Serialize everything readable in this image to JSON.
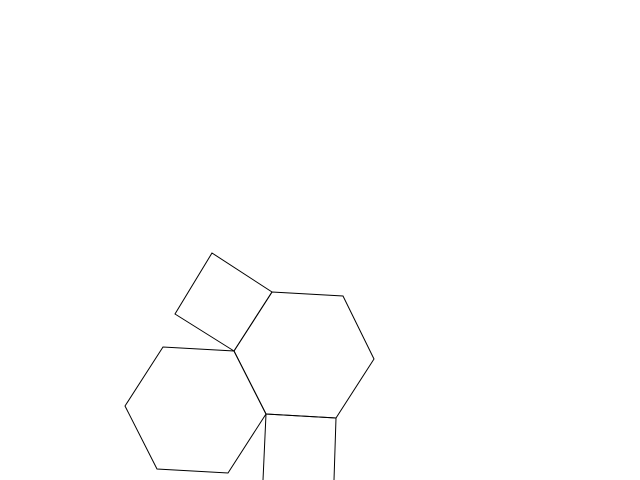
{
  "diagram": {
    "background_color": "#ffffff",
    "stroke_color": "#000000",
    "shapes": [
      {
        "name": "square-top-left",
        "kind": "square"
      },
      {
        "name": "hexagon-upper-right",
        "kind": "hexagon"
      },
      {
        "name": "hexagon-lower-left",
        "kind": "hexagon"
      },
      {
        "name": "square-bottom-partial",
        "kind": "square"
      }
    ]
  }
}
